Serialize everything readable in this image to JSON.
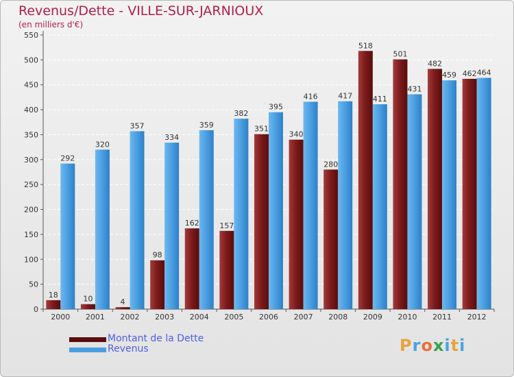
{
  "title": "Revenus/Dette - VILLE-SUR-JARNIOUX",
  "subtitle": "(en milliers d'€)",
  "colors": {
    "dette": "#7a1a1a",
    "revenus": "#4a9ee0",
    "title": "#b01e4a",
    "legend_text": "#4a61e0"
  },
  "logo": {
    "text": "Proxiti",
    "letters": [
      "P",
      "r",
      "o",
      "x",
      "i",
      "t",
      "i"
    ],
    "colors": [
      "#e8a33d",
      "#4aa3df",
      "#e8703a",
      "#3aa04a",
      "#4aa3df",
      "#e8a33d",
      "#4aa3df"
    ]
  },
  "chart_data": {
    "type": "bar",
    "categories": [
      "2000",
      "2001",
      "2002",
      "2003",
      "2004",
      "2005",
      "2006",
      "2007",
      "2008",
      "2009",
      "2010",
      "2011",
      "2012"
    ],
    "series": [
      {
        "name": "Montant de la Dette",
        "values": [
          18,
          10,
          4,
          98,
          162,
          157,
          351,
          340,
          280,
          518,
          501,
          482,
          462
        ]
      },
      {
        "name": "Revenus",
        "values": [
          292,
          320,
          357,
          334,
          359,
          382,
          395,
          416,
          417,
          411,
          431,
          459,
          464
        ]
      }
    ],
    "ylim": [
      0,
      550
    ],
    "yticks": [
      0,
      50,
      100,
      150,
      200,
      250,
      300,
      350,
      400,
      450,
      500,
      550
    ],
    "grid": true,
    "legend_position": "bottom-left"
  }
}
